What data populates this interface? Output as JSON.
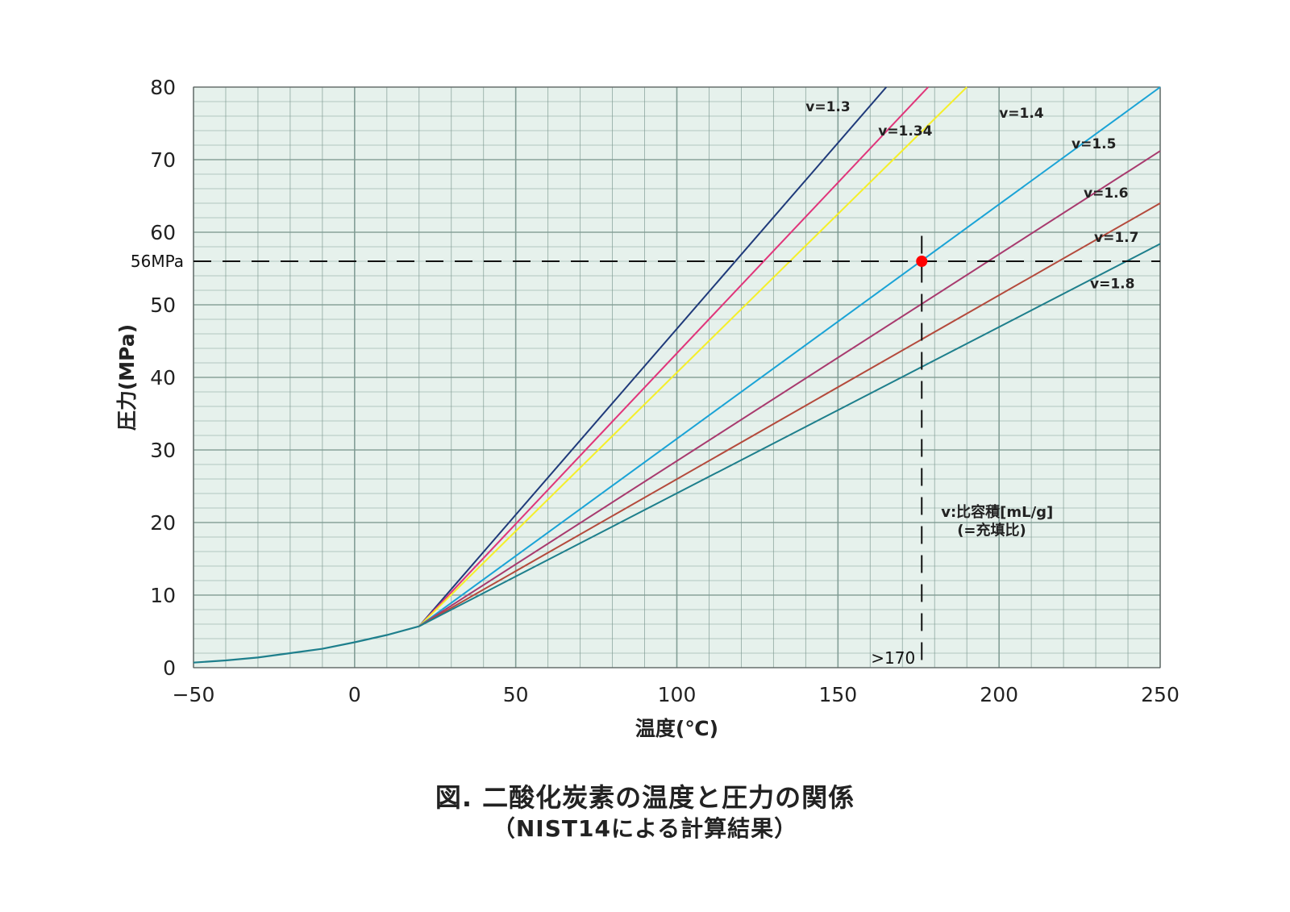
{
  "chart_data": {
    "type": "line",
    "xlabel": "温度(℃)",
    "ylabel": "圧力(MPa)",
    "xlim": [
      -50,
      250
    ],
    "ylim": [
      0,
      80
    ],
    "xticks": [
      "−50",
      "0",
      "50",
      "100",
      "150",
      "200",
      "250"
    ],
    "yticks": [
      "0",
      "10",
      "20",
      "30",
      "40",
      "50",
      "60",
      "70",
      "80"
    ],
    "grid": true,
    "colors": {
      "background": "#e6f1ec",
      "grid": "#7e9a92",
      "marker": "#ff0000"
    },
    "base_curve": {
      "color": "#1e7f8c",
      "points": [
        [
          -50,
          0.7
        ],
        [
          -40,
          1.0
        ],
        [
          -30,
          1.4
        ],
        [
          -20,
          2.0
        ],
        [
          -10,
          2.6
        ],
        [
          0,
          3.5
        ],
        [
          10,
          4.5
        ],
        [
          20,
          5.7
        ]
      ]
    },
    "series": [
      {
        "name": "v=1.3",
        "color": "#1f3a7a",
        "points": [
          [
            20,
            5.7
          ],
          [
            165,
            80
          ]
        ]
      },
      {
        "name": "v=1.34",
        "color": "#e0357a",
        "points": [
          [
            20,
            5.7
          ],
          [
            178,
            80
          ]
        ]
      },
      {
        "name": "v=1.4",
        "color": "#f5ef2a",
        "points": [
          [
            20,
            5.7
          ],
          [
            190,
            80
          ]
        ]
      },
      {
        "name": "v=1.5",
        "color": "#1aa3d6",
        "points": [
          [
            20,
            5.7
          ],
          [
            250,
            80
          ]
        ]
      },
      {
        "name": "v=1.6",
        "color": "#a83a6e",
        "points": [
          [
            20,
            5.7
          ],
          [
            250,
            71.2
          ]
        ]
      },
      {
        "name": "v=1.7",
        "color": "#b44a3c",
        "points": [
          [
            20,
            5.7
          ],
          [
            250,
            64.0
          ]
        ]
      },
      {
        "name": "v=1.8",
        "color": "#1e7f8c",
        "points": [
          [
            20,
            5.7
          ],
          [
            250,
            58.4
          ]
        ]
      }
    ],
    "reference": {
      "y": 56,
      "y_label": "56MPa",
      "x": 176,
      "x_label": ">170",
      "point": [
        176,
        56
      ]
    },
    "note_lines": [
      "v:比容積[mL/g]",
      "(=充填比)"
    ]
  },
  "caption": {
    "line1": "図. 二酸化炭素の温度と圧力の関係",
    "line2": "（NIST14による計算結果）"
  }
}
